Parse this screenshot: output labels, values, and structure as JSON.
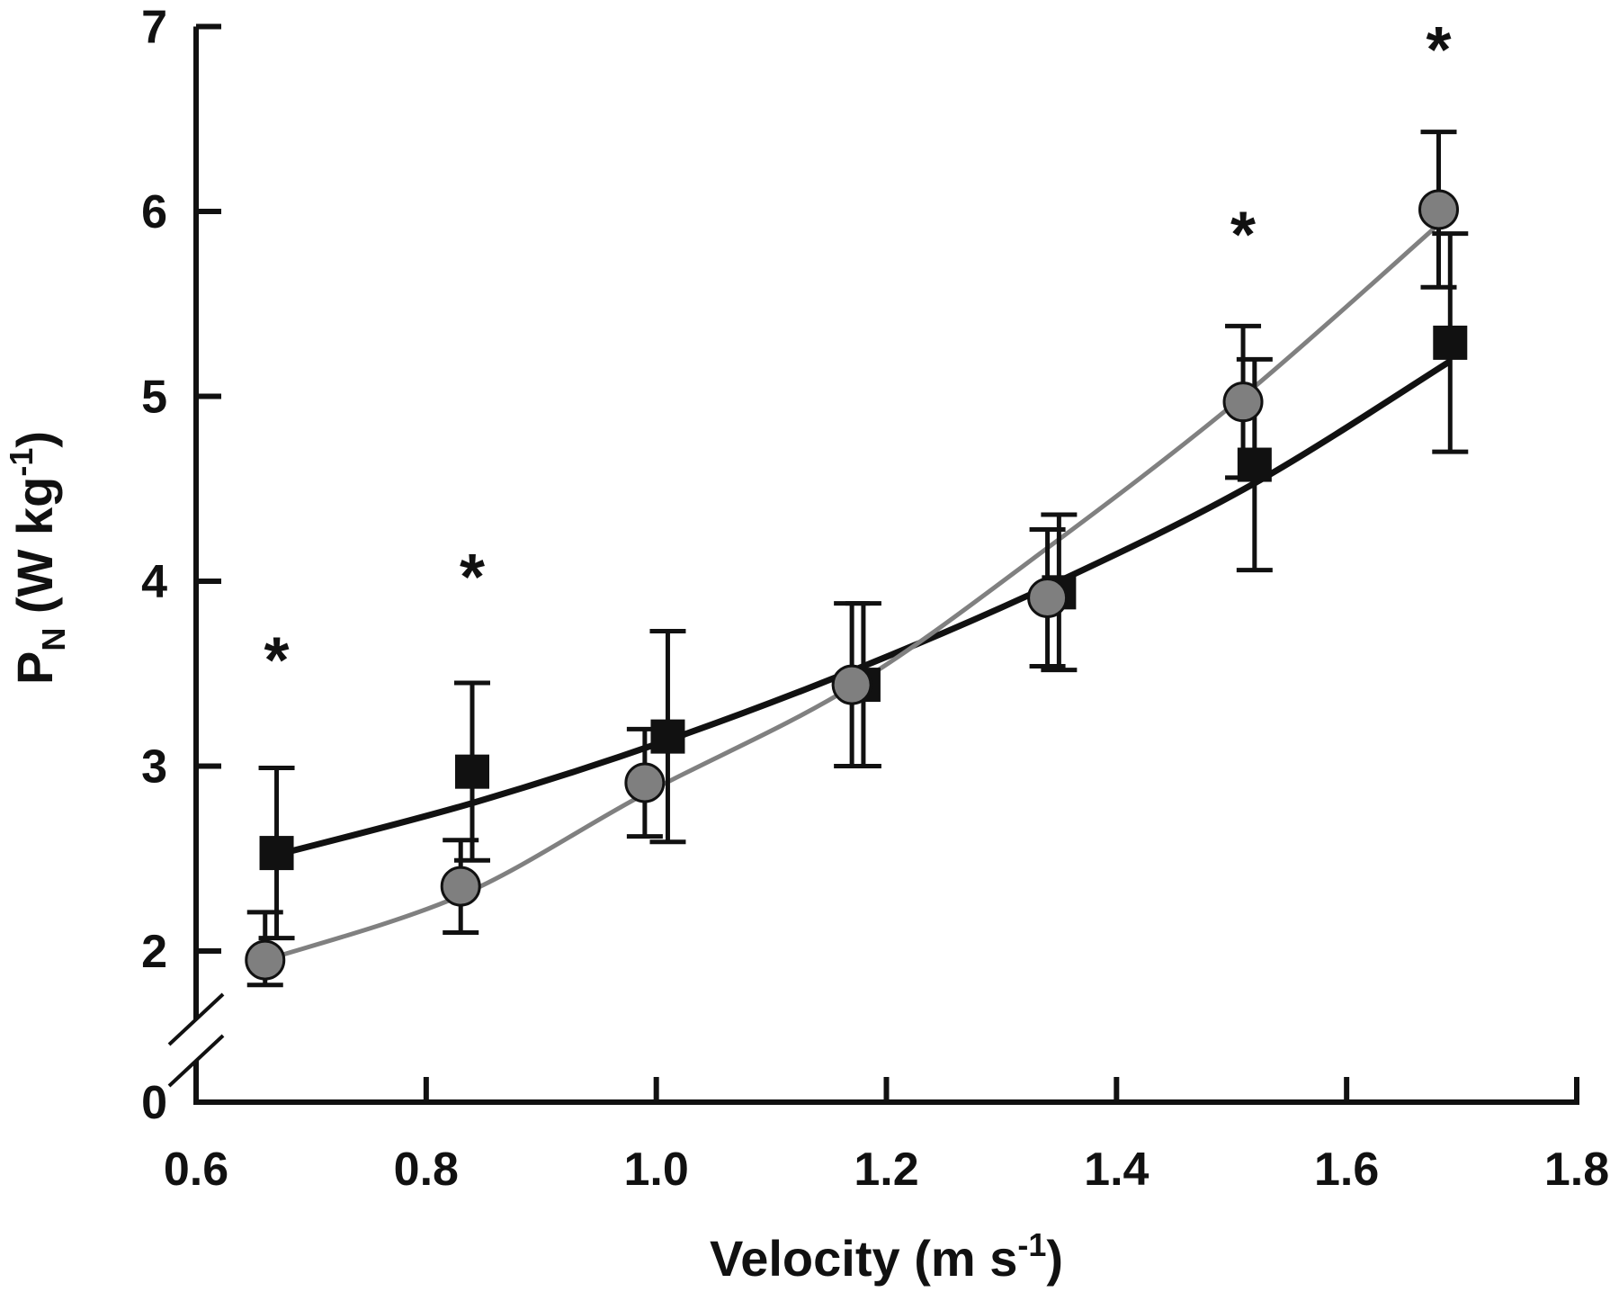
{
  "chart_data": {
    "type": "line",
    "title": "",
    "xlabel": {
      "main": "Velocity (m s",
      "sup": "-1",
      "close": ")"
    },
    "ylabel": {
      "main": "P",
      "sub": "N",
      "mid": " (W kg",
      "sup": "-1",
      "close": ")"
    },
    "xlim": [
      0.6,
      1.8
    ],
    "ylim": [
      0,
      7
    ],
    "x_ticks": [
      {
        "value": 0.6,
        "label": "0.6"
      },
      {
        "value": 0.8,
        "label": "0.8"
      },
      {
        "value": 1.0,
        "label": "1.0"
      },
      {
        "value": 1.2,
        "label": "1.2"
      },
      {
        "value": 1.4,
        "label": "1.4"
      },
      {
        "value": 1.6,
        "label": "1.6"
      },
      {
        "value": 1.8,
        "label": "1.8"
      }
    ],
    "y_ticks": [
      {
        "value": 0,
        "label": "0"
      },
      {
        "value": 2,
        "label": "2"
      },
      {
        "value": 3,
        "label": "3"
      },
      {
        "value": 4,
        "label": "4"
      },
      {
        "value": 5,
        "label": "5"
      },
      {
        "value": 6,
        "label": "6"
      },
      {
        "value": 7,
        "label": "7"
      }
    ],
    "y_axis_break": [
      0,
      1.5
    ],
    "grid": false,
    "series": [
      {
        "marker": "square",
        "color": "#111111",
        "line_color": "#111111",
        "x": [
          0.67,
          0.84,
          1.01,
          1.18,
          1.35,
          1.52,
          1.69
        ],
        "y": [
          2.53,
          2.97,
          3.16,
          3.44,
          3.94,
          4.63,
          5.29
        ],
        "err": [
          0.46,
          0.48,
          0.57,
          0.44,
          0.42,
          0.57,
          0.59
        ],
        "fit": [
          2.52,
          2.8,
          3.14,
          3.54,
          4.0,
          4.53,
          5.19
        ]
      },
      {
        "marker": "circle",
        "color": "#7f7f7f",
        "line_color": "#808080",
        "x": [
          0.66,
          0.83,
          0.99,
          1.17,
          1.34,
          1.51,
          1.68
        ],
        "y": [
          1.88,
          2.35,
          2.91,
          3.44,
          3.91,
          4.97,
          6.01
        ],
        "err": [
          0.33,
          0.25,
          0.29,
          0.44,
          0.37,
          0.41,
          0.42
        ],
        "fit": [
          1.88,
          2.3,
          2.85,
          3.43,
          4.18,
          5.0,
          5.93
        ]
      }
    ],
    "annotations": [
      {
        "text": "*",
        "x": 0.67,
        "y": 3.58
      },
      {
        "text": "*",
        "x": 0.84,
        "y": 4.03
      },
      {
        "text": "*",
        "x": 1.51,
        "y": 5.88
      },
      {
        "text": "*",
        "x": 1.68,
        "y": 6.88
      }
    ]
  }
}
